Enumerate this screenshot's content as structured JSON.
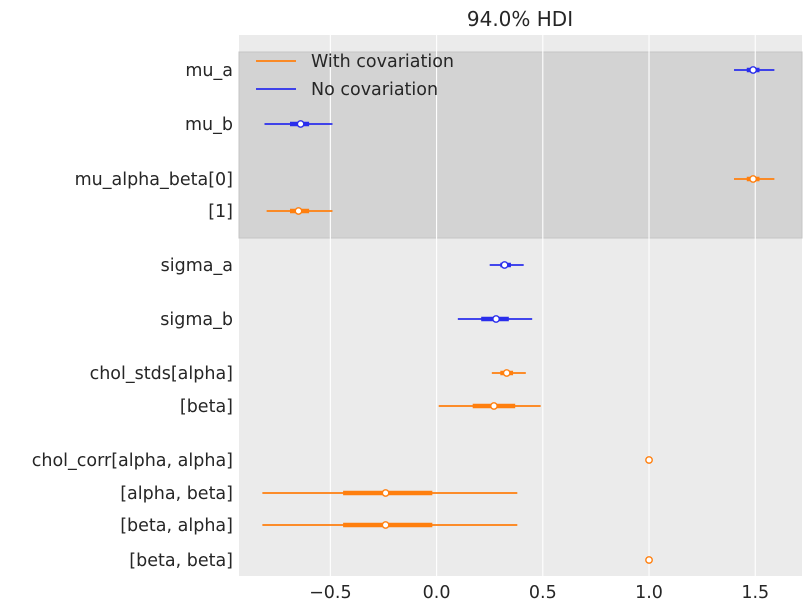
{
  "chart_data": {
    "type": "forest",
    "title": "94.0% HDI",
    "xlim": [
      -0.93,
      1.72
    ],
    "x_ticks": [
      -0.5,
      0.0,
      0.5,
      1.0,
      1.5
    ],
    "x_tick_labels": [
      "−0.5",
      "0.0",
      "0.5",
      "1.0",
      "1.5"
    ],
    "grid": true,
    "legend": {
      "location": "top-left",
      "entries": [
        {
          "name": "With covariation",
          "color": "#ff7f0e"
        },
        {
          "name": "No covariation",
          "color": "#2a2eec"
        }
      ]
    },
    "highlighted_rows": [
      "mu_a",
      "mu_b",
      "mu_alpha_beta[0]",
      "[1]"
    ],
    "rows": [
      {
        "label": "mu_a",
        "series": "No covariation",
        "hdi_low": 1.4,
        "hdi_high": 1.59,
        "iqr_low": 1.46,
        "iqr_high": 1.52,
        "median": 1.49
      },
      {
        "label": "mu_b",
        "series": "No covariation",
        "hdi_low": -0.81,
        "hdi_high": -0.49,
        "iqr_low": -0.69,
        "iqr_high": -0.6,
        "median": -0.64
      },
      {
        "label": "mu_alpha_beta[0]",
        "series": "With covariation",
        "hdi_low": 1.4,
        "hdi_high": 1.59,
        "iqr_low": 1.46,
        "iqr_high": 1.52,
        "median": 1.49
      },
      {
        "label": "[1]",
        "series": "With covariation",
        "hdi_low": -0.8,
        "hdi_high": -0.49,
        "iqr_low": -0.69,
        "iqr_high": -0.6,
        "median": -0.65
      },
      {
        "label": "sigma_a",
        "series": "No covariation",
        "hdi_low": 0.25,
        "hdi_high": 0.41,
        "iqr_low": 0.3,
        "iqr_high": 0.35,
        "median": 0.32
      },
      {
        "label": "sigma_b",
        "series": "No covariation",
        "hdi_low": 0.1,
        "hdi_high": 0.45,
        "iqr_low": 0.21,
        "iqr_high": 0.34,
        "median": 0.28
      },
      {
        "label": "chol_stds[alpha]",
        "series": "With covariation",
        "hdi_low": 0.26,
        "hdi_high": 0.42,
        "iqr_low": 0.3,
        "iqr_high": 0.36,
        "median": 0.33
      },
      {
        "label": "[beta]",
        "series": "With covariation",
        "hdi_low": 0.01,
        "hdi_high": 0.49,
        "iqr_low": 0.17,
        "iqr_high": 0.37,
        "median": 0.27
      },
      {
        "label": "chol_corr[alpha, alpha]",
        "series": "With covariation",
        "hdi_low": 1.0,
        "hdi_high": 1.0,
        "iqr_low": 1.0,
        "iqr_high": 1.0,
        "median": 1.0
      },
      {
        "label": "[alpha, beta]",
        "series": "With covariation",
        "hdi_low": -0.82,
        "hdi_high": 0.38,
        "iqr_low": -0.44,
        "iqr_high": -0.02,
        "median": -0.24
      },
      {
        "label": "[beta, alpha]",
        "series": "With covariation",
        "hdi_low": -0.82,
        "hdi_high": 0.38,
        "iqr_low": -0.44,
        "iqr_high": -0.02,
        "median": -0.24
      },
      {
        "label": "[beta, beta]",
        "series": "With covariation",
        "hdi_low": 1.0,
        "hdi_high": 1.0,
        "iqr_low": 1.0,
        "iqr_high": 1.0,
        "median": 1.0
      }
    ]
  },
  "colors": {
    "plot_background": "#ebebeb",
    "highlight_band": "#d3d3d3",
    "grid": "#ffffff",
    "text": "#262626"
  }
}
